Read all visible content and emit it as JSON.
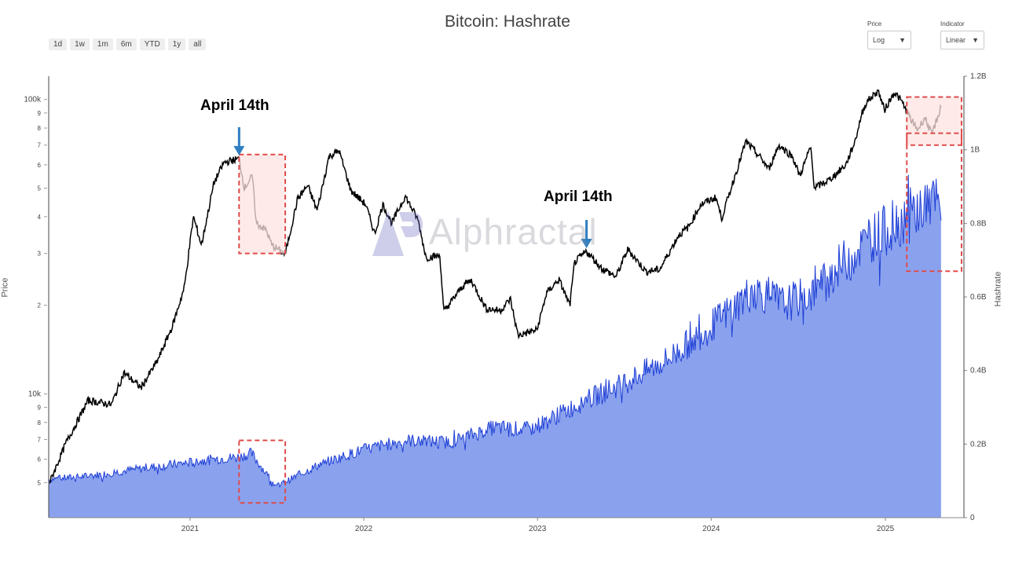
{
  "title": "Bitcoin: Hashrate",
  "range_buttons": [
    "1d",
    "1w",
    "1m",
    "6m",
    "YTD",
    "1y",
    "all"
  ],
  "price_selector": {
    "label": "Price",
    "value": "Log"
  },
  "indicator_selector": {
    "label": "Indicator",
    "value": "Linear"
  },
  "watermark": "Alphractal",
  "annotations": [
    "April 14th",
    "April 14th"
  ],
  "colors": {
    "price_line": "#000000",
    "hashrate_line": "#1f3fd6",
    "hashrate_fill": "#8aa2ee",
    "highlight_box": "#e04a4a",
    "highlight_fill": "#fde4e2",
    "arrow": "#2e7fc1"
  },
  "chart_data": {
    "type": "line",
    "x_range": [
      "2020-03-10",
      "2025-06-15"
    ],
    "x_ticks": [
      "2021",
      "2022",
      "2023",
      "2024",
      "2025"
    ],
    "y_left": {
      "label": "Price",
      "scale": "log",
      "range": [
        3800,
        120000
      ],
      "ticks": [
        {
          "v": 5000,
          "t": "5"
        },
        {
          "v": 6000,
          "t": "6"
        },
        {
          "v": 7000,
          "t": "7"
        },
        {
          "v": 8000,
          "t": "8"
        },
        {
          "v": 9000,
          "t": "9"
        },
        {
          "v": 10000,
          "t": "10k"
        },
        {
          "v": 20000,
          "t": "2"
        },
        {
          "v": 30000,
          "t": "3"
        },
        {
          "v": 40000,
          "t": "4"
        },
        {
          "v": 50000,
          "t": "5"
        },
        {
          "v": 60000,
          "t": "6"
        },
        {
          "v": 70000,
          "t": "7"
        },
        {
          "v": 80000,
          "t": "8"
        },
        {
          "v": 90000,
          "t": "9"
        },
        {
          "v": 100000,
          "t": "100k"
        }
      ]
    },
    "y_right": {
      "label": "Hashrate",
      "scale": "linear",
      "range": [
        0,
        1200000000
      ],
      "ticks": [
        {
          "v": 0,
          "t": "0"
        },
        {
          "v": 200000000,
          "t": "0.2B"
        },
        {
          "v": 400000000,
          "t": "0.4B"
        },
        {
          "v": 600000000,
          "t": "0.6B"
        },
        {
          "v": 800000000,
          "t": "0.8B"
        },
        {
          "v": 1000000000,
          "t": "1B"
        },
        {
          "v": 1200000000,
          "t": "1.2B"
        }
      ]
    },
    "series": [
      {
        "name": "Price",
        "axis": "left",
        "points": [
          [
            "2020-03-12",
            5000
          ],
          [
            "2020-04-15",
            6800
          ],
          [
            "2020-06-01",
            9500
          ],
          [
            "2020-07-20",
            9200
          ],
          [
            "2020-08-15",
            11800
          ],
          [
            "2020-09-20",
            10500
          ],
          [
            "2020-10-25",
            13000
          ],
          [
            "2020-11-25",
            17000
          ],
          [
            "2020-12-20",
            23000
          ],
          [
            "2021-01-08",
            40000
          ],
          [
            "2021-01-25",
            32000
          ],
          [
            "2021-02-20",
            52000
          ],
          [
            "2021-03-13",
            61000
          ],
          [
            "2021-04-14",
            63000
          ],
          [
            "2021-04-25",
            50000
          ],
          [
            "2021-05-12",
            55000
          ],
          [
            "2021-05-20",
            38000
          ],
          [
            "2021-06-10",
            36000
          ],
          [
            "2021-06-22",
            32000
          ],
          [
            "2021-07-20",
            29800
          ],
          [
            "2021-08-15",
            46000
          ],
          [
            "2021-09-05",
            51000
          ],
          [
            "2021-09-25",
            42000
          ],
          [
            "2021-10-20",
            64000
          ],
          [
            "2021-11-10",
            67000
          ],
          [
            "2021-12-05",
            49000
          ],
          [
            "2022-01-05",
            44000
          ],
          [
            "2022-01-24",
            35000
          ],
          [
            "2022-02-10",
            44000
          ],
          [
            "2022-03-01",
            38000
          ],
          [
            "2022-03-29",
            47000
          ],
          [
            "2022-04-25",
            39000
          ],
          [
            "2022-05-12",
            29000
          ],
          [
            "2022-06-10",
            29500
          ],
          [
            "2022-06-18",
            19000
          ],
          [
            "2022-07-30",
            23500
          ],
          [
            "2022-08-15",
            24300
          ],
          [
            "2022-09-15",
            19500
          ],
          [
            "2022-10-15",
            19200
          ],
          [
            "2022-11-05",
            21000
          ],
          [
            "2022-11-21",
            15800
          ],
          [
            "2022-12-31",
            16500
          ],
          [
            "2023-01-20",
            22000
          ],
          [
            "2023-02-15",
            24500
          ],
          [
            "2023-03-10",
            20000
          ],
          [
            "2023-03-20",
            28000
          ],
          [
            "2023-04-14",
            30500
          ],
          [
            "2023-05-15",
            26800
          ],
          [
            "2023-06-15",
            25000
          ],
          [
            "2023-07-10",
            31000
          ],
          [
            "2023-08-17",
            26000
          ],
          [
            "2023-09-15",
            26500
          ],
          [
            "2023-10-24",
            34500
          ],
          [
            "2023-11-15",
            37000
          ],
          [
            "2023-12-10",
            44000
          ],
          [
            "2024-01-11",
            46500
          ],
          [
            "2024-01-23",
            39500
          ],
          [
            "2024-02-15",
            52000
          ],
          [
            "2024-03-14",
            72000
          ],
          [
            "2024-04-15",
            63000
          ],
          [
            "2024-05-01",
            58000
          ],
          [
            "2024-05-22",
            70000
          ],
          [
            "2024-06-20",
            64000
          ],
          [
            "2024-07-05",
            55000
          ],
          [
            "2024-07-28",
            69000
          ],
          [
            "2024-08-05",
            50000
          ],
          [
            "2024-09-06",
            53500
          ],
          [
            "2024-10-10",
            60000
          ],
          [
            "2024-10-29",
            72000
          ],
          [
            "2024-11-12",
            89000
          ],
          [
            "2024-11-22",
            98000
          ],
          [
            "2024-12-17",
            107000
          ],
          [
            "2024-12-30",
            92000
          ],
          [
            "2025-01-20",
            106000
          ],
          [
            "2025-02-05",
            98000
          ],
          [
            "2025-02-26",
            84000
          ],
          [
            "2025-03-10",
            79000
          ],
          [
            "2025-03-25",
            87000
          ],
          [
            "2025-04-08",
            76000
          ],
          [
            "2025-04-20",
            86000
          ],
          [
            "2025-04-28",
            95000
          ]
        ]
      },
      {
        "name": "Hashrate",
        "axis": "right",
        "points": [
          [
            "2020-03-10",
            105000000
          ],
          [
            "2020-05-10",
            110000000
          ],
          [
            "2020-07-01",
            118000000
          ],
          [
            "2020-09-01",
            130000000
          ],
          [
            "2020-11-01",
            140000000
          ],
          [
            "2021-01-01",
            150000000
          ],
          [
            "2021-03-01",
            160000000
          ],
          [
            "2021-04-14",
            165000000
          ],
          [
            "2021-05-10",
            175000000
          ],
          [
            "2021-06-10",
            120000000
          ],
          [
            "2021-07-01",
            85000000
          ],
          [
            "2021-08-01",
            105000000
          ],
          [
            "2021-10-01",
            145000000
          ],
          [
            "2022-01-01",
            185000000
          ],
          [
            "2022-04-01",
            210000000
          ],
          [
            "2022-07-01",
            205000000
          ],
          [
            "2022-10-01",
            245000000
          ],
          [
            "2022-12-15",
            240000000
          ],
          [
            "2023-02-01",
            270000000
          ],
          [
            "2023-04-14",
            320000000
          ],
          [
            "2023-07-01",
            365000000
          ],
          [
            "2023-10-01",
            430000000
          ],
          [
            "2024-01-01",
            520000000
          ],
          [
            "2024-04-01",
            620000000
          ],
          [
            "2024-06-01",
            580000000
          ],
          [
            "2024-08-01",
            610000000
          ],
          [
            "2024-10-01",
            690000000
          ],
          [
            "2024-12-01",
            760000000
          ],
          [
            "2025-01-15",
            790000000
          ],
          [
            "2025-02-15",
            820000000
          ],
          [
            "2025-03-15",
            840000000
          ],
          [
            "2025-04-15",
            860000000
          ],
          [
            "2025-04-28",
            820000000
          ]
        ]
      }
    ],
    "highlights": [
      {
        "axis": "left",
        "x": [
          "2021-04-14",
          "2021-07-20"
        ],
        "y": [
          30000,
          65000
        ],
        "filled": true
      },
      {
        "axis": "right",
        "x": [
          "2021-04-14",
          "2021-07-20"
        ],
        "y": [
          40000000,
          210000000
        ],
        "filled": false
      },
      {
        "axis": "left",
        "x": [
          "2025-02-15",
          "2025-06-10"
        ],
        "y": [
          70000,
          102000
        ],
        "filled": true
      },
      {
        "axis": "right",
        "x": [
          "2025-02-15",
          "2025-06-10"
        ],
        "y": [
          670000000,
          1045000000
        ],
        "filled": false
      }
    ],
    "arrows": [
      {
        "x": "2021-04-14",
        "price": 63000
      },
      {
        "x": "2023-04-14",
        "price": 30500
      }
    ]
  }
}
